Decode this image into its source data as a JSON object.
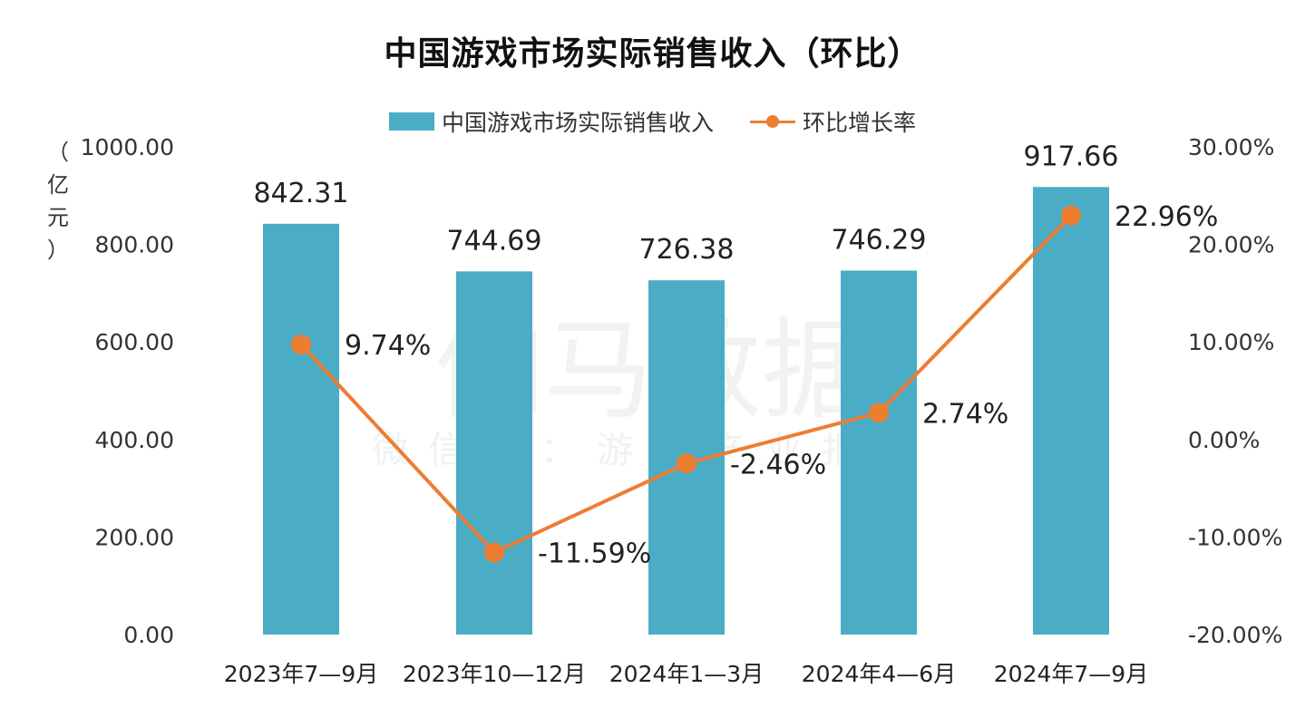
{
  "title": "中国游戏市场实际销售收入（环比）",
  "legend": {
    "bar_label": "中国游戏市场实际销售收入",
    "line_label": "环比增长率"
  },
  "y_left_unit": [
    "（",
    "亿",
    "元",
    "）"
  ],
  "watermark": {
    "main": "伽马数据",
    "sub": "微信号：游戏产业报告"
  },
  "colors": {
    "bar": "#4bacc6",
    "line": "#ed7d31",
    "text": "#333333"
  },
  "chart_data": {
    "type": "bar+line",
    "title": "中国游戏市场实际销售收入（环比）",
    "categories": [
      "2023年7—9月",
      "2023年10—12月",
      "2024年1—3月",
      "2024年4—6月",
      "2024年7—9月"
    ],
    "series": [
      {
        "name": "中国游戏市场实际销售收入",
        "type": "bar",
        "axis": "left",
        "values": [
          842.31,
          744.69,
          726.38,
          746.29,
          917.66
        ],
        "labels": [
          "842.31",
          "744.69",
          "726.38",
          "746.29",
          "917.66"
        ]
      },
      {
        "name": "环比增长率",
        "type": "line",
        "axis": "right",
        "values": [
          9.74,
          -11.59,
          -2.46,
          2.74,
          22.96
        ],
        "labels": [
          "9.74%",
          "-11.59%",
          "-2.46%",
          "2.74%",
          "22.96%"
        ]
      }
    ],
    "ylabel_left": "（亿元）",
    "ylim_left": [
      0,
      1000
    ],
    "yticks_left": [
      "0.00",
      "200.00",
      "400.00",
      "600.00",
      "800.00",
      "1000.00"
    ],
    "ylim_right": [
      -20,
      30
    ],
    "yticks_right": [
      "-20.00%",
      "-10.00%",
      "0.00%",
      "10.00%",
      "20.00%",
      "30.00%"
    ],
    "grid": false,
    "legend_position": "top"
  }
}
